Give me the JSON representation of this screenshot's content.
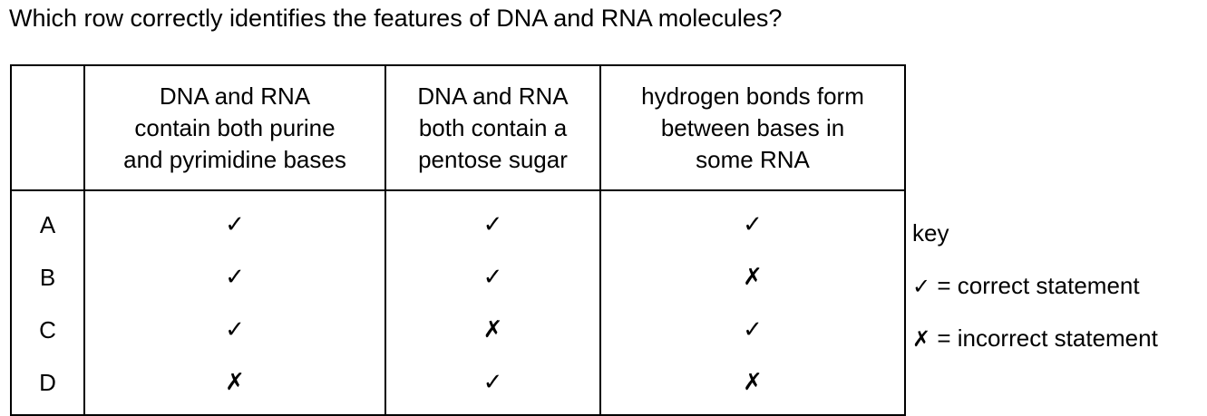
{
  "question": "Which row correctly identifies the features of DNA and RNA molecules?",
  "table": {
    "headers": [
      "",
      "DNA and RNA\ncontain both purine\nand pyrimidine bases",
      "DNA and RNA\nboth contain a\npentose sugar",
      "hydrogen bonds form\nbetween bases in\nsome RNA"
    ],
    "rows": [
      {
        "letter": "A",
        "cells": [
          "✓",
          "✓",
          "✓"
        ]
      },
      {
        "letter": "B",
        "cells": [
          "✓",
          "✓",
          "✗"
        ]
      },
      {
        "letter": "C",
        "cells": [
          "✓",
          "✗",
          "✓"
        ]
      },
      {
        "letter": "D",
        "cells": [
          "✗",
          "✓",
          "✗"
        ]
      }
    ]
  },
  "key": {
    "title": "key",
    "correct_symbol": "✓",
    "correct_text": " = correct statement",
    "incorrect_symbol": "✗",
    "incorrect_text": " = incorrect statement"
  }
}
